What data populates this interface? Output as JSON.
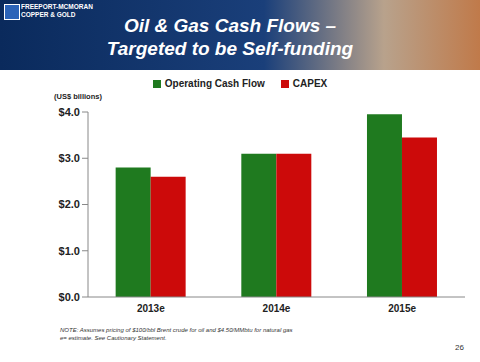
{
  "chart_data": {
    "type": "bar",
    "title": "Oil & Gas Cash Flows –",
    "subtitle": "Targeted to be Self-funding",
    "y_label": "(US$ billions)",
    "categories": [
      "2013e",
      "2014e",
      "2015e"
    ],
    "series": [
      {
        "name": "Operating Cash Flow",
        "color": "#1f7a1f",
        "values": [
          2.8,
          3.1,
          3.95
        ]
      },
      {
        "name": "CAPEX",
        "color": "#cc0a0a",
        "values": [
          2.6,
          3.1,
          3.45
        ]
      }
    ],
    "ylim": [
      0,
      4
    ],
    "yticks": [
      {
        "value": 0,
        "label": "$0.0"
      },
      {
        "value": 1,
        "label": "$1.0"
      },
      {
        "value": 2,
        "label": "$2.0"
      },
      {
        "value": 3,
        "label": "$3.0"
      },
      {
        "value": 4,
        "label": "$4.0"
      }
    ],
    "grid": false,
    "annotations": [
      "Freeport-McMoRan",
      "Copper & Gold",
      "NOTE: Assumes pricing of $100/bbl Brent crude for oil and $4.50/MMbtu for natural gas",
      "e= estimate. See Cautionary Statement.",
      "26"
    ]
  }
}
